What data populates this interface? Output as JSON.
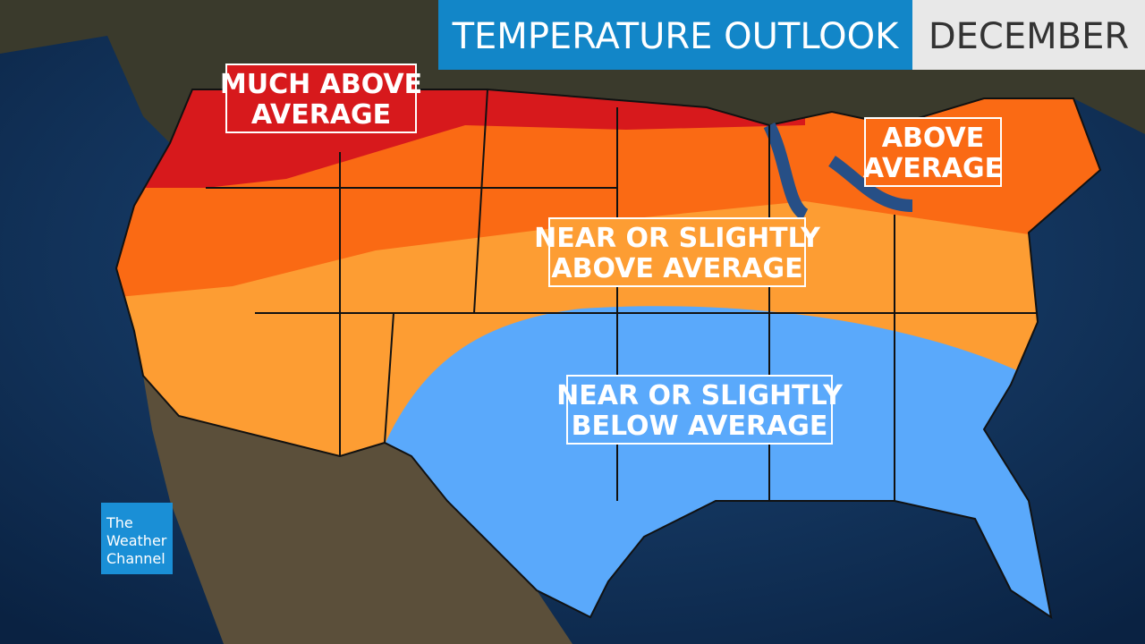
{
  "header": {
    "title": "TEMPERATURE OUTLOOK",
    "month": "DECEMBER"
  },
  "regions": [
    {
      "label_lines": [
        "MUCH ABOVE",
        "AVERAGE"
      ],
      "color": "#d7191c"
    },
    {
      "label_lines": [
        "ABOVE",
        "AVERAGE"
      ],
      "color": "#fa6a14"
    },
    {
      "label_lines": [
        "NEAR OR SLIGHTLY",
        "ABOVE AVERAGE"
      ],
      "color": "#fd9d33"
    },
    {
      "label_lines": [
        "NEAR OR SLIGHTLY",
        "BELOW AVERAGE"
      ],
      "color": "#5aa9fb"
    }
  ],
  "logo": {
    "lines": [
      "The",
      "Weather",
      "Channel"
    ]
  }
}
